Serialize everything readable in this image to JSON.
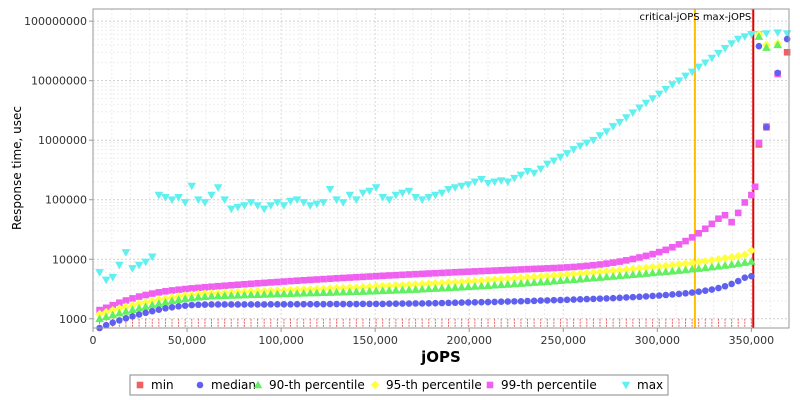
{
  "chart_data": {
    "type": "scatter",
    "title": "",
    "xlabel": "jOPS",
    "ylabel": "Response time, usec",
    "xlim": [
      0,
      370000
    ],
    "ylim": [
      700,
      160000000
    ],
    "yscale": "log",
    "grid": true,
    "legend_placement": "bottom",
    "x_ticks": [
      {
        "value": 0,
        "label": "0"
      },
      {
        "value": 50000,
        "label": "50,000"
      },
      {
        "value": 100000,
        "label": "100,000"
      },
      {
        "value": 150000,
        "label": "150,000"
      },
      {
        "value": 200000,
        "label": "200,000"
      },
      {
        "value": 250000,
        "label": "250,000"
      },
      {
        "value": 300000,
        "label": "300,000"
      },
      {
        "value": 350000,
        "label": "350,000"
      }
    ],
    "y_ticks": [
      {
        "value": 1000,
        "label": "1000"
      },
      {
        "value": 10000,
        "label": "10000"
      },
      {
        "value": 100000,
        "label": "100000"
      },
      {
        "value": 1000000,
        "label": "1000000"
      },
      {
        "value": 10000000,
        "label": "10000000"
      },
      {
        "value": 100000000,
        "label": "100000000"
      }
    ],
    "reference_lines": [
      {
        "label": "critical-jOPS",
        "x": 320000,
        "color": "#ffc000"
      },
      {
        "label": "max-jOPS",
        "x": 351000,
        "color": "#e00000"
      }
    ],
    "sweep": {
      "start": 3500,
      "step": 3500,
      "count": 100
    },
    "series": [
      {
        "name": "min",
        "marker": "square",
        "color": "#f06060",
        "values": [
          1000,
          1000,
          1000,
          1000,
          1000,
          1000,
          1000,
          1000,
          1000,
          1000,
          1000,
          1000,
          1000,
          1000,
          1000,
          1000,
          1000,
          1000,
          1000,
          1000,
          1000,
          1000,
          1000,
          1000,
          1000,
          1000,
          1000,
          1000,
          1000,
          1000,
          1000,
          1000,
          1000,
          1000,
          1000,
          1000,
          1000,
          1000,
          1000,
          1000,
          1000,
          1000,
          1000,
          1000,
          1000,
          1000,
          1000,
          1000,
          1000,
          1000,
          1000,
          1000,
          1000,
          1000,
          1000,
          1000,
          1000,
          1000,
          1000,
          1000,
          1000,
          1000,
          1000,
          1000,
          1000,
          1000,
          1000,
          1000,
          1000,
          1000,
          1000,
          1000,
          1000,
          1000,
          1000,
          1000,
          1000,
          1000,
          1000,
          1000,
          1000,
          1000,
          1000,
          1000,
          1000,
          1000,
          1000,
          1000,
          1000,
          1000,
          1000,
          1000,
          1000,
          1000,
          1000,
          1000,
          1000,
          1000,
          1000,
          1000
        ],
        "tail": [
          [
            354000,
            850000
          ],
          [
            358000,
            1650000
          ],
          [
            364000,
            13000000
          ],
          [
            369000,
            30000000
          ]
        ]
      },
      {
        "name": "median",
        "marker": "circle",
        "color": "#6060f0",
        "values": [
          700,
          780,
          860,
          940,
          1020,
          1100,
          1180,
          1260,
          1340,
          1420,
          1500,
          1560,
          1620,
          1660,
          1700,
          1720,
          1730,
          1740,
          1740,
          1740,
          1740,
          1740,
          1740,
          1740,
          1740,
          1740,
          1750,
          1750,
          1750,
          1750,
          1760,
          1760,
          1760,
          1760,
          1760,
          1770,
          1770,
          1770,
          1770,
          1770,
          1780,
          1780,
          1780,
          1780,
          1790,
          1790,
          1800,
          1800,
          1810,
          1810,
          1820,
          1830,
          1840,
          1850,
          1860,
          1870,
          1880,
          1890,
          1900,
          1910,
          1920,
          1940,
          1950,
          1960,
          1970,
          1990,
          2000,
          2020,
          2030,
          2050,
          2060,
          2080,
          2100,
          2120,
          2140,
          2160,
          2180,
          2200,
          2220,
          2250,
          2280,
          2310,
          2340,
          2380,
          2420,
          2460,
          2510,
          2560,
          2610,
          2680,
          2760,
          2850,
          2960,
          3100,
          3280,
          3520,
          3850,
          4300,
          4900,
          5200
        ],
        "tail": [
          [
            354000,
            38000000
          ],
          [
            358000,
            1650000
          ],
          [
            364000,
            13500000
          ],
          [
            369000,
            50000000
          ]
        ]
      },
      {
        "name": "90-th percentile",
        "marker": "triangle-up",
        "color": "#60f060",
        "values": [
          1000,
          1080,
          1160,
          1240,
          1330,
          1420,
          1510,
          1600,
          1700,
          1800,
          1900,
          2000,
          2090,
          2170,
          2240,
          2300,
          2350,
          2390,
          2420,
          2440,
          2460,
          2480,
          2500,
          2520,
          2540,
          2560,
          2580,
          2600,
          2620,
          2640,
          2660,
          2680,
          2700,
          2720,
          2740,
          2760,
          2780,
          2800,
          2820,
          2850,
          2870,
          2890,
          2920,
          2950,
          2980,
          3010,
          3040,
          3070,
          3100,
          3140,
          3180,
          3220,
          3260,
          3300,
          3340,
          3390,
          3440,
          3490,
          3540,
          3600,
          3660,
          3720,
          3780,
          3840,
          3910,
          3980,
          4050,
          4120,
          4200,
          4280,
          4370,
          4450,
          4540,
          4630,
          4730,
          4830,
          4930,
          5040,
          5150,
          5260,
          5380,
          5500,
          5620,
          5750,
          5880,
          6020,
          6160,
          6310,
          6460,
          6620,
          6800,
          6980,
          7180,
          7390,
          7620,
          7870,
          8150,
          8460,
          8800,
          9200
        ],
        "tail": [
          [
            354000,
            55000000
          ],
          [
            358000,
            36000000
          ],
          [
            364000,
            40000000
          ]
        ]
      },
      {
        "name": "95-th percentile",
        "marker": "diamond",
        "color": "#ffff40",
        "values": [
          1200,
          1290,
          1390,
          1490,
          1590,
          1690,
          1790,
          1890,
          1990,
          2090,
          2190,
          2290,
          2380,
          2460,
          2530,
          2590,
          2640,
          2680,
          2710,
          2740,
          2770,
          2800,
          2830,
          2860,
          2890,
          2920,
          2950,
          2980,
          3010,
          3040,
          3070,
          3100,
          3130,
          3160,
          3190,
          3230,
          3260,
          3290,
          3330,
          3370,
          3410,
          3450,
          3490,
          3530,
          3570,
          3620,
          3670,
          3720,
          3770,
          3820,
          3870,
          3930,
          3990,
          4050,
          4110,
          4170,
          4240,
          4310,
          4380,
          4450,
          4530,
          4610,
          4690,
          4770,
          4860,
          4950,
          5040,
          5130,
          5230,
          5330,
          5430,
          5540,
          5650,
          5760,
          5880,
          6000,
          6130,
          6260,
          6400,
          6540,
          6690,
          6840,
          7000,
          7170,
          7350,
          7540,
          7740,
          7950,
          8180,
          8420,
          8680,
          8960,
          9270,
          9600,
          9960,
          10400,
          10800,
          11300,
          11900,
          14000
        ],
        "tail": [
          [
            354000,
            60000000
          ],
          [
            358000,
            40000000
          ],
          [
            364000,
            42000000
          ]
        ]
      },
      {
        "name": "99-th percentile",
        "marker": "square",
        "color": "#f060f0",
        "values": [
          1400,
          1530,
          1690,
          1860,
          2030,
          2200,
          2360,
          2510,
          2650,
          2780,
          2890,
          2990,
          3080,
          3160,
          3240,
          3310,
          3380,
          3450,
          3520,
          3590,
          3660,
          3730,
          3800,
          3870,
          3940,
          4010,
          4080,
          4150,
          4220,
          4290,
          4360,
          4430,
          4500,
          4570,
          4640,
          4710,
          4780,
          4850,
          4920,
          4990,
          5060,
          5130,
          5200,
          5270,
          5340,
          5410,
          5480,
          5550,
          5620,
          5690,
          5760,
          5830,
          5900,
          5970,
          6040,
          6110,
          6180,
          6250,
          6320,
          6390,
          6460,
          6530,
          6600,
          6670,
          6740,
          6810,
          6880,
          6950,
          7030,
          7110,
          7200,
          7300,
          7420,
          7560,
          7730,
          7930,
          8170,
          8450,
          8770,
          9140,
          9570,
          10100,
          10700,
          11400,
          12200,
          13200,
          14400,
          15900,
          17800,
          20200,
          23300,
          27300,
          32500,
          39300,
          48000,
          55000,
          42000,
          60000,
          90000,
          120000
        ],
        "tail": [
          [
            352000,
            165000
          ],
          [
            354000,
            900000
          ],
          [
            358000,
            1700000
          ],
          [
            364000,
            13000000
          ]
        ]
      },
      {
        "name": "max",
        "marker": "triangle-down",
        "color": "#60f0f0",
        "values": [
          6000,
          4500,
          5000,
          8000,
          13000,
          7000,
          8000,
          9000,
          11000,
          120000,
          110000,
          100000,
          110000,
          90000,
          170000,
          100000,
          90000,
          120000,
          160000,
          100000,
          70000,
          75000,
          80000,
          90000,
          80000,
          70000,
          80000,
          90000,
          80000,
          95000,
          100000,
          90000,
          80000,
          85000,
          90000,
          150000,
          100000,
          90000,
          120000,
          100000,
          130000,
          140000,
          160000,
          110000,
          100000,
          120000,
          130000,
          140000,
          110000,
          100000,
          110000,
          120000,
          130000,
          150000,
          160000,
          170000,
          180000,
          200000,
          220000,
          190000,
          200000,
          210000,
          200000,
          230000,
          260000,
          300000,
          280000,
          330000,
          400000,
          450000,
          520000,
          600000,
          700000,
          800000,
          900000,
          1000000,
          1200000,
          1400000,
          1700000,
          2000000,
          2400000,
          2900000,
          3500000,
          4200000,
          5000000,
          6000000,
          7200000,
          8600000,
          10000000,
          12000000,
          14000000,
          17000000,
          20000000,
          24000000,
          29000000,
          35000000,
          42000000,
          50000000,
          55000000,
          60000000
        ],
        "tail": [
          [
            354000,
            60000000
          ],
          [
            358000,
            62000000
          ],
          [
            364000,
            64000000
          ],
          [
            369000,
            62000000
          ]
        ]
      }
    ]
  },
  "legend": {
    "items": [
      {
        "label": "min",
        "color": "#f06060",
        "marker": "square"
      },
      {
        "label": "median",
        "color": "#6060f0",
        "marker": "circle"
      },
      {
        "label": "90-th percentile",
        "color": "#60f060",
        "marker": "triangle-up"
      },
      {
        "label": "95-th percentile",
        "color": "#ffff40",
        "marker": "diamond"
      },
      {
        "label": "99-th percentile",
        "color": "#f060f0",
        "marker": "square"
      },
      {
        "label": "max",
        "color": "#60f0f0",
        "marker": "triangle-down"
      }
    ]
  }
}
